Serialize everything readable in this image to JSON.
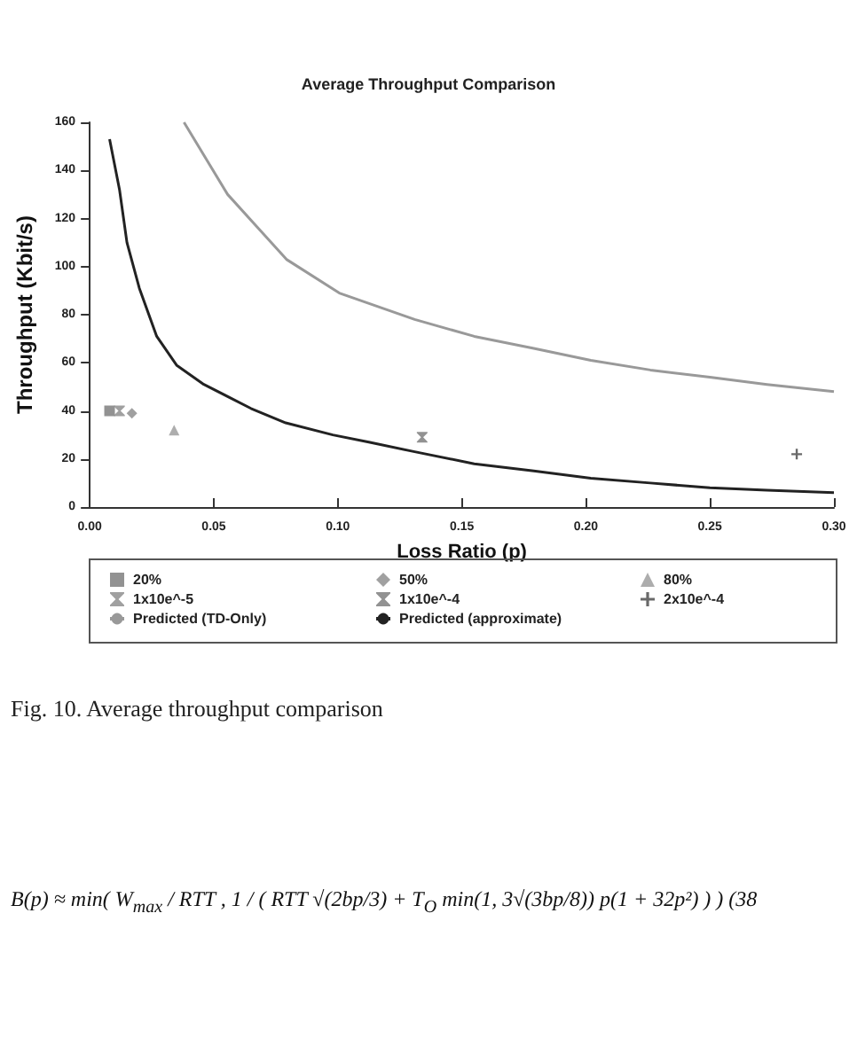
{
  "chart_data": {
    "type": "line",
    "title": "Average Throughput Comparison",
    "xlabel": "Loss Ratio (p)",
    "ylabel": "Throughput (Kbit/s)",
    "x": [
      0.008,
      0.012,
      0.015,
      0.02,
      0.027,
      0.035,
      0.046,
      0.065,
      0.079,
      0.098,
      0.1125,
      0.131,
      0.155,
      0.179,
      0.202,
      0.226,
      0.25,
      0.273,
      0.3
    ],
    "series": [
      {
        "name": "20%",
        "type": "scatter",
        "marker": "square",
        "color": "#777777",
        "x": [
          0.008
        ],
        "values": [
          40
        ]
      },
      {
        "name": "50%",
        "type": "scatter",
        "marker": "diamond",
        "color": "#888888",
        "x": [
          0.017
        ],
        "values": [
          39
        ]
      },
      {
        "name": "80%",
        "type": "scatter",
        "marker": "triangle",
        "color": "#999999",
        "x": [
          0.034
        ],
        "values": [
          32
        ]
      },
      {
        "name": "1x10e^-5",
        "type": "scatter",
        "marker": "star",
        "color": "#888888",
        "x": [
          0.012
        ],
        "values": [
          40
        ]
      },
      {
        "name": "1x10e^-4",
        "type": "scatter",
        "marker": "star",
        "color": "#777777",
        "x": [
          0.134
        ],
        "values": [
          29
        ]
      },
      {
        "name": "2x10e^-4",
        "type": "scatter",
        "marker": "cross",
        "color": "#444444",
        "x": [
          0.285
        ],
        "values": [
          22
        ]
      },
      {
        "name": "Predicted (TD-Only)",
        "type": "line",
        "marker": "none",
        "line_style": "solid",
        "color": "#999999",
        "x": [
          0.038,
          0.0556,
          0.0793,
          0.1006,
          0.131,
          0.155,
          0.179,
          0.202,
          0.226,
          0.25,
          0.273,
          0.3
        ],
        "values": [
          160,
          130,
          103,
          89,
          78,
          71,
          66,
          61,
          57,
          54,
          51,
          48
        ]
      },
      {
        "name": "Predicted (approximate)",
        "type": "line",
        "marker": "none",
        "line_style": "solid",
        "color": "#222222",
        "values": [
          153,
          132,
          110,
          91,
          71,
          59,
          51,
          41,
          35,
          30,
          27,
          23,
          18,
          15,
          12,
          10,
          8,
          7,
          6
        ]
      }
    ],
    "xlim": [
      0,
      0.3
    ],
    "xticks": [
      {
        "value": 0,
        "label": "0.00"
      },
      {
        "value": 0.05,
        "label": "0.05"
      },
      {
        "value": 0.1,
        "label": "0.10"
      },
      {
        "value": 0.15,
        "label": "0.15"
      },
      {
        "value": 0.2,
        "label": "0.20"
      },
      {
        "value": 0.25,
        "label": "0.25"
      },
      {
        "value": 0.3,
        "label": "0.30"
      }
    ],
    "ylim": [
      0,
      160
    ],
    "yticks": [
      0,
      20,
      40,
      60,
      80,
      100,
      120,
      140,
      160
    ],
    "grid": false,
    "legend": "bottom",
    "annotations": [
      "Fig. 10.  Average throughput comparison",
      "B(p) ≈ min( W$_{max}$ / RTT ,  1 / ( RTT √(2bp/3) + T$_{O}$ min(1, 3√(3bp/8)) p(1 + 32p²) ) )    (38"
    ]
  }
}
